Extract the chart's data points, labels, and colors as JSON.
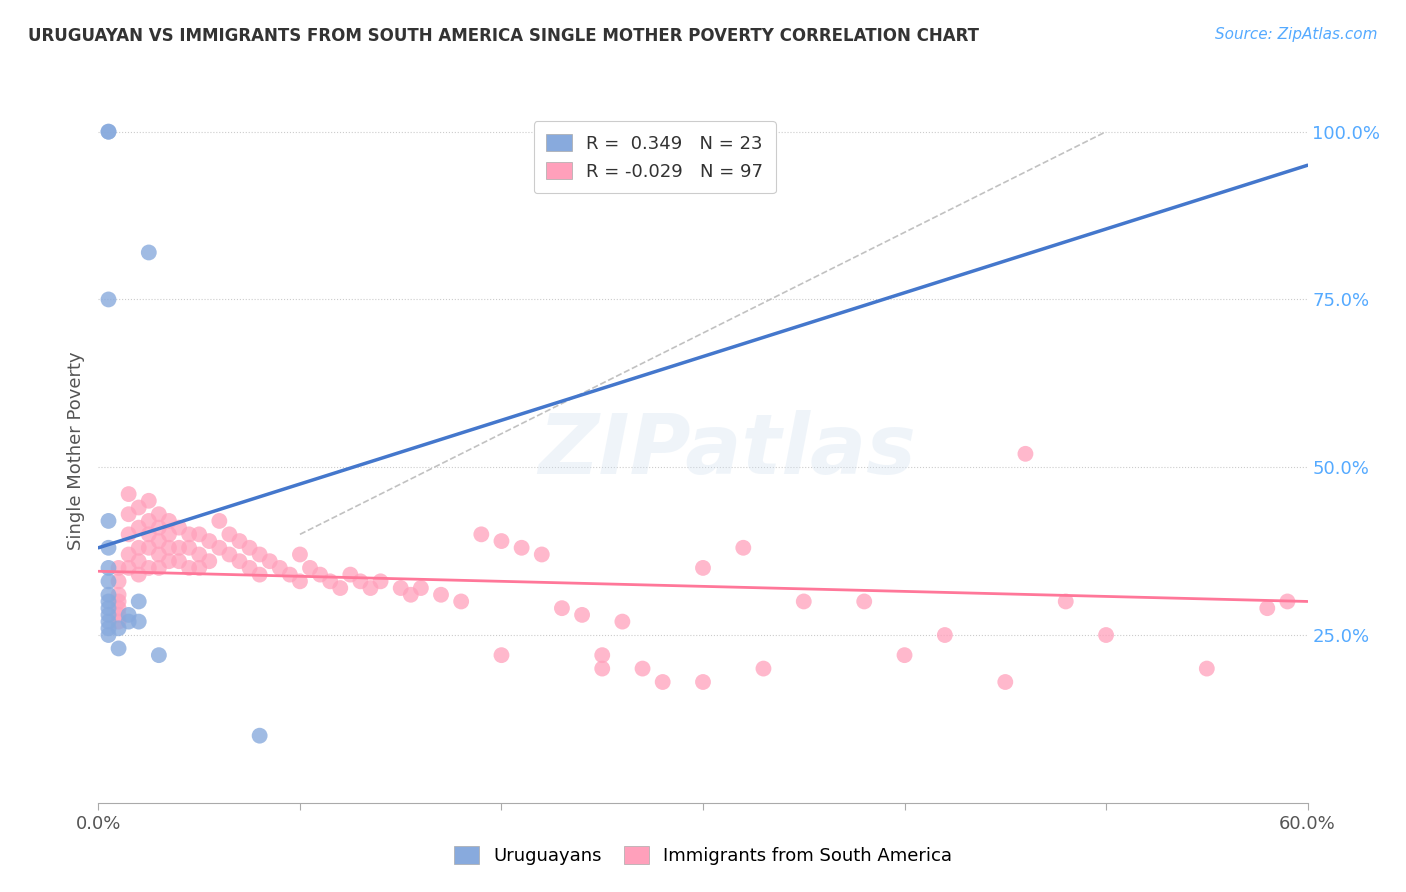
{
  "title": "URUGUAYAN VS IMMIGRANTS FROM SOUTH AMERICA SINGLE MOTHER POVERTY CORRELATION CHART",
  "source": "Source: ZipAtlas.com",
  "ylabel": "Single Mother Poverty",
  "blue_color": "#88AADD",
  "pink_color": "#FFA0BB",
  "blue_line_color": "#4477CC",
  "pink_line_color": "#FF7799",
  "diag_color": "#BBBBBB",
  "watermark_color": "#CCDDEEFF",
  "uruguayan_x": [
    0.5,
    0.5,
    2.5,
    0.5,
    0.5,
    0.5,
    0.5,
    0.5,
    0.5,
    0.5,
    0.5,
    0.5,
    0.5,
    0.5,
    0.5,
    2.0,
    2.0,
    1.5,
    1.5,
    1.0,
    1.0,
    3.0,
    8.0
  ],
  "uruguayan_y": [
    100.0,
    100.0,
    82.0,
    75.0,
    42.0,
    38.0,
    35.0,
    33.0,
    31.0,
    30.0,
    29.0,
    28.0,
    27.0,
    26.0,
    25.0,
    30.0,
    27.0,
    28.0,
    27.0,
    26.0,
    23.0,
    22.0,
    10.0
  ],
  "immigrant_x": [
    1.0,
    1.0,
    1.0,
    1.0,
    1.0,
    1.0,
    1.0,
    1.5,
    1.5,
    1.5,
    1.5,
    1.5,
    2.0,
    2.0,
    2.0,
    2.0,
    2.0,
    2.5,
    2.5,
    2.5,
    2.5,
    2.5,
    3.0,
    3.0,
    3.0,
    3.0,
    3.0,
    3.5,
    3.5,
    3.5,
    3.5,
    4.0,
    4.0,
    4.0,
    4.5,
    4.5,
    4.5,
    5.0,
    5.0,
    5.0,
    5.5,
    5.5,
    6.0,
    6.0,
    6.5,
    6.5,
    7.0,
    7.0,
    7.5,
    7.5,
    8.0,
    8.0,
    8.5,
    9.0,
    9.5,
    10.0,
    10.0,
    10.5,
    11.0,
    11.5,
    12.0,
    12.5,
    13.0,
    13.5,
    14.0,
    15.0,
    15.5,
    16.0,
    17.0,
    18.0,
    19.0,
    20.0,
    21.0,
    22.0,
    23.0,
    24.0,
    25.0,
    26.0,
    27.0,
    28.0,
    30.0,
    32.0,
    33.0,
    35.0,
    38.0,
    40.0,
    42.0,
    45.0,
    46.0,
    48.0,
    50.0,
    55.0,
    58.0,
    59.0,
    20.0,
    25.0,
    30.0
  ],
  "immigrant_y": [
    35.0,
    33.0,
    31.0,
    30.0,
    29.0,
    28.0,
    27.0,
    46.0,
    43.0,
    40.0,
    37.0,
    35.0,
    44.0,
    41.0,
    38.0,
    36.0,
    34.0,
    45.0,
    42.0,
    40.0,
    38.0,
    35.0,
    43.0,
    41.0,
    39.0,
    37.0,
    35.0,
    42.0,
    40.0,
    38.0,
    36.0,
    41.0,
    38.0,
    36.0,
    40.0,
    38.0,
    35.0,
    40.0,
    37.0,
    35.0,
    39.0,
    36.0,
    42.0,
    38.0,
    40.0,
    37.0,
    39.0,
    36.0,
    38.0,
    35.0,
    37.0,
    34.0,
    36.0,
    35.0,
    34.0,
    37.0,
    33.0,
    35.0,
    34.0,
    33.0,
    32.0,
    34.0,
    33.0,
    32.0,
    33.0,
    32.0,
    31.0,
    32.0,
    31.0,
    30.0,
    40.0,
    39.0,
    38.0,
    37.0,
    29.0,
    28.0,
    22.0,
    27.0,
    20.0,
    18.0,
    35.0,
    38.0,
    20.0,
    30.0,
    30.0,
    22.0,
    25.0,
    18.0,
    52.0,
    30.0,
    25.0,
    20.0,
    29.0,
    30.0,
    22.0,
    20.0,
    18.0
  ],
  "xlim": [
    0.0,
    60.0
  ],
  "ylim": [
    0.0,
    105.0
  ],
  "yticks": [
    25.0,
    50.0,
    75.0,
    100.0
  ],
  "xtick_positions": [
    0.0,
    10.0,
    20.0,
    30.0,
    40.0,
    50.0,
    60.0
  ],
  "blue_reg_x0": 0.0,
  "blue_reg_x1": 60.0,
  "blue_reg_y0": 38.0,
  "blue_reg_y1": 95.0,
  "pink_reg_x0": 0.0,
  "pink_reg_x1": 60.0,
  "pink_reg_y0": 34.5,
  "pink_reg_y1": 30.0,
  "diag_x0": 10.0,
  "diag_y0": 40.0,
  "diag_x1": 50.0,
  "diag_y1": 100.0
}
